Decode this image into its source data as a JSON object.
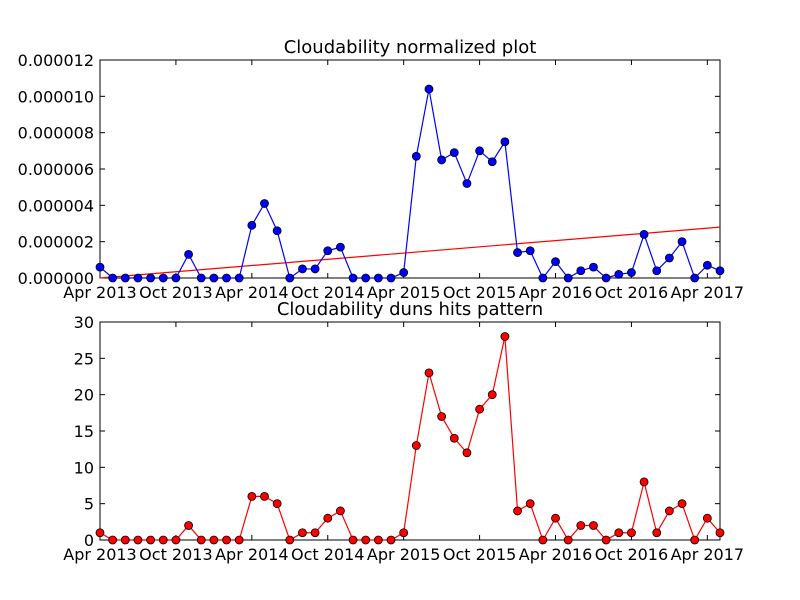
{
  "chart_data": [
    {
      "type": "line",
      "title": "Cloudability normalized plot",
      "xlabel": "",
      "ylabel": "",
      "x_start": "2013-04",
      "x_end": "2017-05",
      "ylim": [
        0,
        1.2e-05
      ],
      "yticks": [
        0,
        2e-06,
        4e-06,
        6e-06,
        8e-06,
        1e-05,
        1.2e-05
      ],
      "ytick_labels": [
        "0.000000",
        "0.000002",
        "0.000004",
        "0.000006",
        "0.000008",
        "0.000010",
        "0.000012"
      ],
      "xtick_labels": [
        "Apr 2013",
        "Oct 2013",
        "Apr 2014",
        "Oct 2014",
        "Apr 2015",
        "Oct 2015",
        "Apr 2016",
        "Oct 2016",
        "Apr 2017"
      ],
      "grid": false,
      "series": [
        {
          "color": "#0000ff",
          "marker": "circle",
          "x": [
            "2013-04",
            "2013-05",
            "2013-06",
            "2013-07",
            "2013-08",
            "2013-09",
            "2013-10",
            "2013-11",
            "2013-12",
            "2014-01",
            "2014-02",
            "2014-03",
            "2014-04",
            "2014-05",
            "2014-06",
            "2014-07",
            "2014-08",
            "2014-09",
            "2014-10",
            "2014-11",
            "2014-12",
            "2015-01",
            "2015-02",
            "2015-03",
            "2015-04",
            "2015-05",
            "2015-06",
            "2015-07",
            "2015-08",
            "2015-09",
            "2015-10",
            "2015-11",
            "2015-12",
            "2016-01",
            "2016-02",
            "2016-03",
            "2016-04",
            "2016-05",
            "2016-06",
            "2016-07",
            "2016-08",
            "2016-09",
            "2016-10",
            "2016-11",
            "2016-12",
            "2017-01",
            "2017-02",
            "2017-03",
            "2017-04",
            "2017-05"
          ],
          "values": [
            6e-07,
            0,
            0,
            0,
            0,
            0,
            0,
            1.3e-06,
            0,
            0,
            0,
            0,
            2.9e-06,
            4.1e-06,
            2.6e-06,
            0,
            5e-07,
            5e-07,
            1.5e-06,
            1.7e-06,
            0,
            0,
            0,
            0,
            3e-07,
            6.7e-06,
            1.04e-05,
            6.5e-06,
            6.9e-06,
            5.2e-06,
            7e-06,
            6.4e-06,
            7.5e-06,
            1.4e-06,
            1.5e-06,
            0,
            9e-07,
            0,
            4e-07,
            6e-07,
            0,
            2e-07,
            3e-07,
            2.4e-06,
            4e-07,
            1.1e-06,
            2e-06,
            0,
            7e-07,
            4e-07
          ]
        }
      ],
      "trend_line": {
        "color": "#ff0000",
        "start_value": 0,
        "end_value": 2.8e-06
      }
    },
    {
      "type": "line",
      "title": "Cloudability duns hits pattern",
      "xlabel": "",
      "ylabel": "",
      "x_start": "2013-04",
      "x_end": "2017-05",
      "ylim": [
        0,
        30
      ],
      "yticks": [
        0,
        5,
        10,
        15,
        20,
        25,
        30
      ],
      "ytick_labels": [
        "0",
        "5",
        "10",
        "15",
        "20",
        "25",
        "30"
      ],
      "xtick_labels": [
        "Apr 2013",
        "Oct 2013",
        "Apr 2014",
        "Oct 2014",
        "Apr 2015",
        "Oct 2015",
        "Apr 2016",
        "Oct 2016",
        "Apr 2017"
      ],
      "grid": false,
      "series": [
        {
          "color": "#ff0000",
          "marker": "circle",
          "x": [
            "2013-04",
            "2013-05",
            "2013-06",
            "2013-07",
            "2013-08",
            "2013-09",
            "2013-10",
            "2013-11",
            "2013-12",
            "2014-01",
            "2014-02",
            "2014-03",
            "2014-04",
            "2014-05",
            "2014-06",
            "2014-07",
            "2014-08",
            "2014-09",
            "2014-10",
            "2014-11",
            "2014-12",
            "2015-01",
            "2015-02",
            "2015-03",
            "2015-04",
            "2015-05",
            "2015-06",
            "2015-07",
            "2015-08",
            "2015-09",
            "2015-10",
            "2015-11",
            "2015-12",
            "2016-01",
            "2016-02",
            "2016-03",
            "2016-04",
            "2016-05",
            "2016-06",
            "2016-07",
            "2016-08",
            "2016-09",
            "2016-10",
            "2016-11",
            "2016-12",
            "2017-01",
            "2017-02",
            "2017-03",
            "2017-04",
            "2017-05"
          ],
          "values": [
            1,
            0,
            0,
            0,
            0,
            0,
            0,
            2,
            0,
            0,
            0,
            0,
            6,
            6,
            5,
            0,
            1,
            1,
            3,
            4,
            0,
            0,
            0,
            0,
            1,
            13,
            23,
            17,
            14,
            12,
            18,
            20,
            28,
            4,
            5,
            0,
            3,
            0,
            2,
            2,
            0,
            1,
            1,
            8,
            1,
            4,
            5,
            0,
            3,
            1
          ]
        }
      ]
    }
  ]
}
